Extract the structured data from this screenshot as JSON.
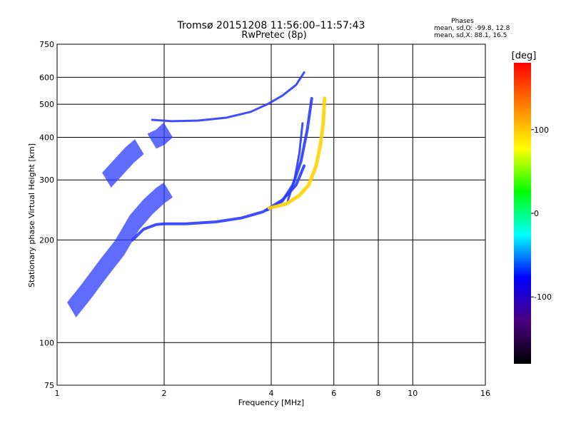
{
  "chart_data": {
    "type": "scatter",
    "title": "Tromsø 20151208 11:56:00–11:57:43",
    "subtitle": "RwPretec (8p)",
    "xlabel": "Frequency [MHz]",
    "ylabel": "Stationary phase Virtual Height [km]",
    "x_scale": "log",
    "y_scale": "log",
    "xlim": [
      1,
      16
    ],
    "ylim": [
      75,
      750
    ],
    "x_ticks": [
      1,
      2,
      4,
      6,
      8,
      10,
      16
    ],
    "y_ticks": [
      75,
      100,
      200,
      300,
      400,
      500,
      600,
      750
    ],
    "x_gridlines": [
      2,
      4,
      6,
      8,
      10
    ],
    "y_gridlines": [
      100,
      200,
      300,
      400,
      500,
      600
    ],
    "stats_title": "Phases",
    "stats": [
      "mean, sd,O:  -99.8, 12.8",
      "mean, sd,X:  88.1, 16.5"
    ],
    "colorbar": {
      "label": "[deg]",
      "range": [
        -180,
        180
      ],
      "ticks": [
        100,
        0,
        -100
      ],
      "colors": [
        "#000000",
        "#4b0082",
        "#0000ff",
        "#00ffff",
        "#00ff00",
        "#ffff00",
        "#ff8000",
        "#ff0000"
      ]
    },
    "traces": [
      {
        "kind": "line",
        "phase": -100,
        "color": "#2a3cff",
        "width": 4,
        "x": [
          1.63,
          1.75,
          1.9,
          2.0,
          2.3,
          2.8,
          3.3,
          3.8,
          4.3,
          4.7,
          4.95
        ],
        "y": [
          200,
          215,
          222,
          223,
          223,
          226,
          232,
          242,
          262,
          290,
          330
        ]
      },
      {
        "kind": "line",
        "phase": -100,
        "color": "#2a3cff",
        "width": 4,
        "x": [
          3.9,
          4.3,
          4.6,
          4.85,
          5.05,
          5.2
        ],
        "y": [
          245,
          260,
          290,
          340,
          420,
          520
        ]
      },
      {
        "kind": "line",
        "phase": -100,
        "color": "#2a3cff",
        "width": 3,
        "x": [
          4.45,
          4.65,
          4.8,
          4.9
        ],
        "y": [
          260,
          300,
          360,
          440
        ]
      },
      {
        "kind": "line",
        "phase": 110,
        "color": "#ffd400",
        "width": 5,
        "x": [
          3.95,
          4.4,
          4.8,
          5.1,
          5.35,
          5.5,
          5.6,
          5.65
        ],
        "y": [
          248,
          255,
          270,
          290,
          330,
          380,
          440,
          520
        ]
      },
      {
        "kind": "line",
        "phase": -100,
        "color": "#2a3cff",
        "width": 3,
        "x": [
          1.85,
          2.1,
          2.5,
          3.0,
          3.5,
          3.9,
          4.3,
          4.7,
          4.95
        ],
        "y": [
          450,
          446,
          448,
          457,
          475,
          500,
          530,
          570,
          620
        ]
      },
      {
        "kind": "band",
        "phase": -100,
        "color": "#2a3cff",
        "x": [
          1.1,
          1.2,
          1.35,
          1.5,
          1.65,
          1.8,
          1.95,
          2.05
        ],
        "y": [
          125,
          140,
          165,
          190,
          225,
          250,
          270,
          280
        ]
      },
      {
        "kind": "band",
        "phase": -100,
        "color": "#2a3cff",
        "x": [
          1.38,
          1.5,
          1.6,
          1.7
        ],
        "y": [
          300,
          330,
          355,
          375
        ]
      },
      {
        "kind": "band",
        "phase": -100,
        "color": "#2a3cff",
        "x": [
          1.85,
          1.95,
          2.05
        ],
        "y": [
          390,
          400,
          420
        ]
      }
    ]
  }
}
